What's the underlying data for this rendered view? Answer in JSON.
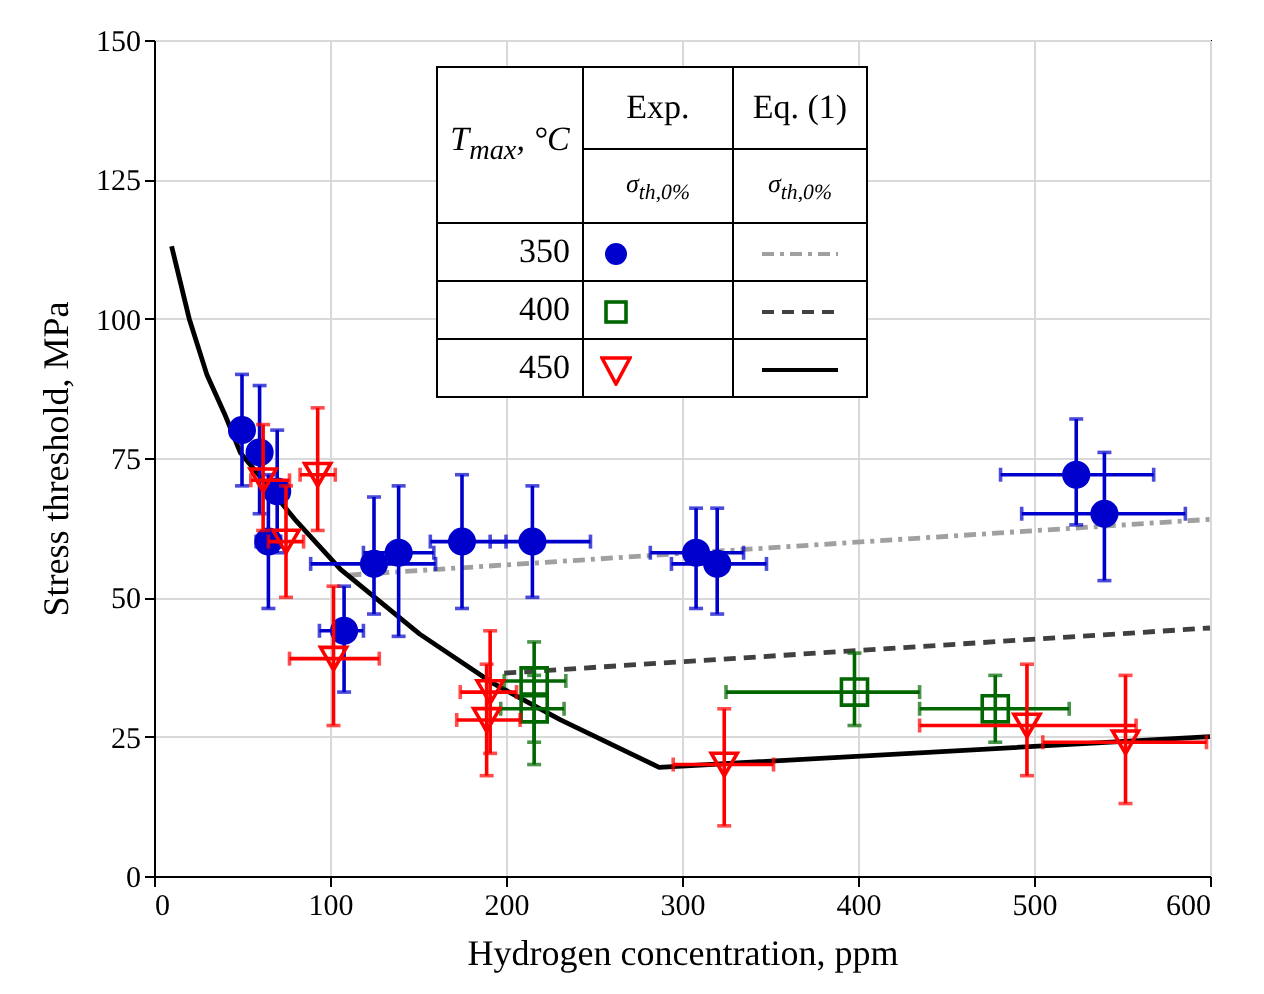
{
  "chart_data": {
    "type": "scatter",
    "xlabel": "Hydrogen concentration, ppm",
    "ylabel": "Stress threshold, MPa",
    "legend_title": "T$_{max}$, °C",
    "annotations": [
      "Exp.",
      "Eq. (1)",
      "σ$_{th,0%}$",
      "σ$_{th,0%}$"
    ],
    "xlim": [
      0,
      600
    ],
    "ylim": [
      0,
      150
    ],
    "xticks": [
      0,
      100,
      200,
      300,
      400,
      500,
      600
    ],
    "yticks": [
      0,
      25,
      50,
      75,
      100,
      125,
      150
    ],
    "grid": true,
    "legend": "top",
    "series": [
      {
        "name": "350",
        "marker": "circle",
        "color": "#0000cc",
        "x": [
          50,
          60,
          70,
          65,
          108,
          125,
          139,
          175,
          215,
          308,
          320,
          524,
          540
        ],
        "values": [
          80,
          76,
          69,
          60,
          44,
          56,
          58,
          60,
          60,
          58,
          56,
          72,
          65
        ],
        "errors": [
          [
            70,
            90
          ],
          [
            65,
            88
          ],
          [
            58,
            80
          ],
          [
            48,
            72
          ],
          [
            33,
            52
          ],
          [
            47,
            68
          ],
          [
            43,
            70
          ],
          [
            48,
            72
          ],
          [
            50,
            70
          ],
          [
            48,
            66
          ],
          [
            47,
            66
          ],
          [
            63,
            82
          ],
          [
            53,
            76
          ]
        ],
        "xerrors": [
          [
            46,
            54
          ],
          [
            55,
            65
          ],
          [
            64,
            76
          ],
          [
            58,
            72
          ],
          [
            94,
            119
          ],
          [
            89,
            160
          ],
          [
            119,
            159
          ],
          [
            157,
            200
          ],
          [
            191,
            248
          ],
          [
            282,
            335
          ],
          [
            294,
            348
          ],
          [
            481,
            568
          ],
          [
            493,
            586
          ]
        ]
      },
      {
        "name": "400",
        "marker": "square",
        "color": "#006600",
        "x": [
          216,
          216,
          398,
          478
        ],
        "values": [
          35,
          30,
          33,
          30
        ],
        "errors": [
          [
            24,
            42
          ],
          [
            20,
            36
          ],
          [
            27,
            40
          ],
          [
            24,
            36
          ]
        ],
        "xerrors": [
          [
            199,
            234
          ],
          [
            197,
            233
          ],
          [
            325,
            435
          ],
          [
            435,
            520
          ]
        ]
      },
      {
        "name": "450",
        "marker": "triangle",
        "color": "#ff0000",
        "x": [
          62,
          75,
          93,
          102,
          191,
          189,
          324,
          496,
          552
        ],
        "values": [
          71,
          60,
          72,
          39,
          33,
          28,
          20,
          27,
          24
        ],
        "errors": [
          [
            62,
            81
          ],
          [
            50,
            70
          ],
          [
            62,
            84
          ],
          [
            27,
            52
          ],
          [
            22,
            44
          ],
          [
            18,
            38
          ],
          [
            9,
            30
          ],
          [
            18,
            38
          ],
          [
            13,
            36
          ]
        ],
        "xerrors": [
          [
            55,
            77
          ],
          [
            65,
            85
          ],
          [
            83,
            103
          ],
          [
            77,
            128
          ],
          [
            174,
            206
          ],
          [
            172,
            208
          ],
          [
            295,
            352
          ],
          [
            435,
            558
          ],
          [
            505,
            598
          ]
        ]
      },
      {
        "type": "line",
        "line_style": "dashdot",
        "color": "#a0a0a0",
        "x": [
          111,
          600
        ],
        "values": [
          54,
          64
        ]
      },
      {
        "type": "line",
        "line_style": "dashed",
        "color": "#404040",
        "x": [
          199,
          600
        ],
        "values": [
          36.4,
          44.5
        ]
      },
      {
        "type": "line",
        "line_style": "solid",
        "color": "#000000",
        "x": [
          10,
          20,
          30,
          40,
          49,
          80,
          106,
          151,
          193,
          231,
          287,
          600
        ],
        "values": [
          113,
          100,
          90,
          83,
          76,
          64,
          55,
          43.4,
          34.5,
          28,
          19.5,
          25
        ]
      }
    ]
  }
}
